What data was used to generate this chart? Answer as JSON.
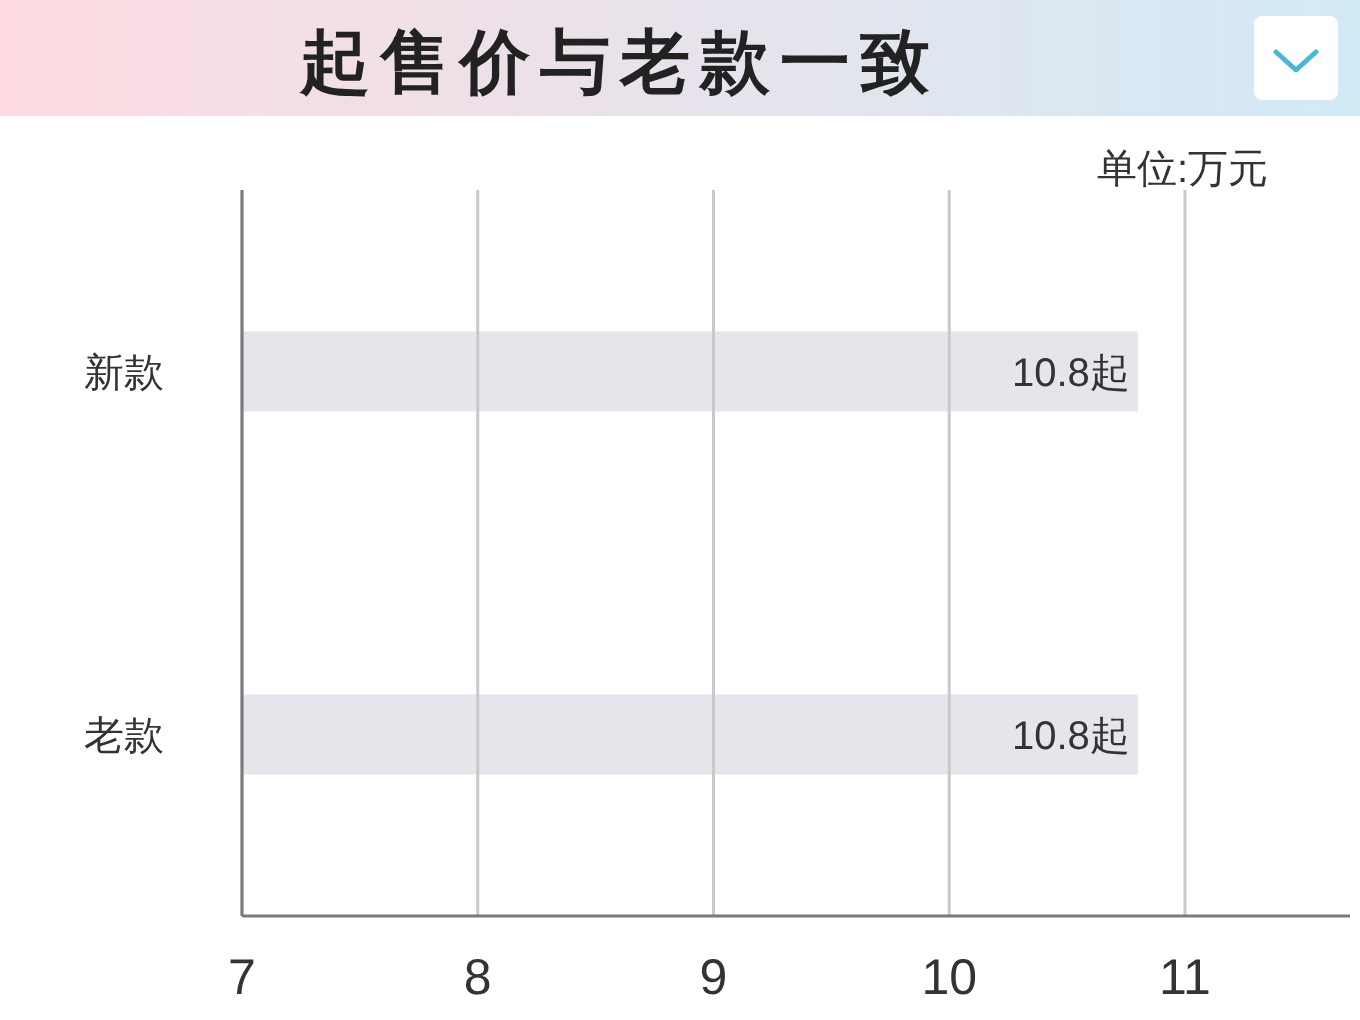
{
  "chart_data": {
    "type": "bar",
    "orientation": "horizontal",
    "title": "起售价与老款一致",
    "annotations": [
      "单位:万元"
    ],
    "categories": [
      "新款",
      "老款"
    ],
    "values": [
      10.8,
      10.8
    ],
    "value_labels": [
      "10.8起",
      "10.8起"
    ],
    "color": "#e8e4ec",
    "xlim": [
      7,
      11.7
    ],
    "xticks": [
      7,
      8,
      9,
      10,
      11
    ],
    "grid": "x"
  }
}
